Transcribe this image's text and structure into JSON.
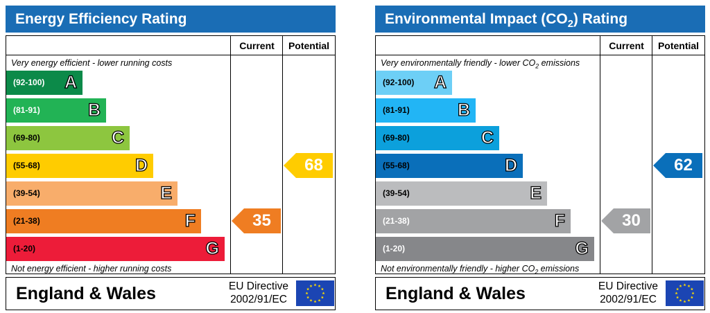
{
  "panels": [
    {
      "title": "Energy Efficiency Rating",
      "title_sub": "",
      "title_suffix": "",
      "header_color": "#1a6db5",
      "col_current": "Current",
      "col_potential": "Potential",
      "top_caption": "Very energy efficient - lower running costs",
      "top_caption_sub": "",
      "top_caption_suffix": "",
      "bottom_caption": "Not energy efficient - higher running costs",
      "bottom_caption_sub": "",
      "bottom_caption_suffix": "",
      "footer_label": "England & Wales",
      "directive_line1": "EU Directive",
      "directive_line2": "2002/91/EC",
      "flag_icon": "eu-flag-icon",
      "bands": [
        {
          "range": "(92-100)",
          "letter": "A",
          "color": "#0c8a49",
          "text_color": "#ffffff"
        },
        {
          "range": "(81-91)",
          "letter": "B",
          "color": "#22b355",
          "text_color": "#ffffff"
        },
        {
          "range": "(69-80)",
          "letter": "C",
          "color": "#8dc63f",
          "text_color": "#000000"
        },
        {
          "range": "(55-68)",
          "letter": "D",
          "color": "#ffcc00",
          "text_color": "#000000"
        },
        {
          "range": "(39-54)",
          "letter": "E",
          "color": "#f8ad6b",
          "text_color": "#000000"
        },
        {
          "range": "(21-38)",
          "letter": "F",
          "color": "#ef7d22",
          "text_color": "#000000"
        },
        {
          "range": "(1-20)",
          "letter": "G",
          "color": "#ed1c39",
          "text_color": "#000000"
        }
      ]
    },
    {
      "title": "Environmental Impact (CO",
      "title_sub": "2",
      "title_suffix": ") Rating",
      "header_color": "#1a6db5",
      "col_current": "Current",
      "col_potential": "Potential",
      "top_caption": "Very environmentally friendly - lower CO",
      "top_caption_sub": "2",
      "top_caption_suffix": " emissions",
      "bottom_caption": "Not environmentally friendly - higher CO",
      "bottom_caption_sub": "2",
      "bottom_caption_suffix": " emissions",
      "footer_label": "England & Wales",
      "directive_line1": "EU Directive",
      "directive_line2": "2002/91/EC",
      "flag_icon": "eu-flag-icon",
      "bands": [
        {
          "range": "(92-100)",
          "letter": "A",
          "color": "#6dcff6",
          "text_color": "#000000"
        },
        {
          "range": "(81-91)",
          "letter": "B",
          "color": "#22b5f5",
          "text_color": "#000000"
        },
        {
          "range": "(69-80)",
          "letter": "C",
          "color": "#0ca0dc",
          "text_color": "#000000"
        },
        {
          "range": "(55-68)",
          "letter": "D",
          "color": "#0a6fba",
          "text_color": "#000000"
        },
        {
          "range": "(39-54)",
          "letter": "E",
          "color": "#bbbcbe",
          "text_color": "#000000"
        },
        {
          "range": "(21-38)",
          "letter": "F",
          "color": "#a2a3a5",
          "text_color": "#ffffff"
        },
        {
          "range": "(1-20)",
          "letter": "G",
          "color": "#86878a",
          "text_color": "#ffffff"
        }
      ]
    }
  ],
  "chart_data": [
    {
      "type": "bar",
      "title": "Energy Efficiency Rating",
      "categories": [
        "A",
        "B",
        "C",
        "D",
        "E",
        "F",
        "G"
      ],
      "ranges": [
        "(92-100)",
        "(81-91)",
        "(69-80)",
        "(55-68)",
        "(39-54)",
        "(21-38)",
        "(1-20)"
      ],
      "current": {
        "value": 35,
        "color": "#ef7d22"
      },
      "potential": {
        "value": 68,
        "color": "#ffcc00"
      }
    },
    {
      "type": "bar",
      "title": "Environmental Impact (CO2) Rating",
      "categories": [
        "A",
        "B",
        "C",
        "D",
        "E",
        "F",
        "G"
      ],
      "ranges": [
        "(92-100)",
        "(81-91)",
        "(69-80)",
        "(55-68)",
        "(39-54)",
        "(21-38)",
        "(1-20)"
      ],
      "current": {
        "value": 30,
        "color": "#a2a3a5"
      },
      "potential": {
        "value": 62,
        "color": "#0a6fba"
      }
    }
  ]
}
